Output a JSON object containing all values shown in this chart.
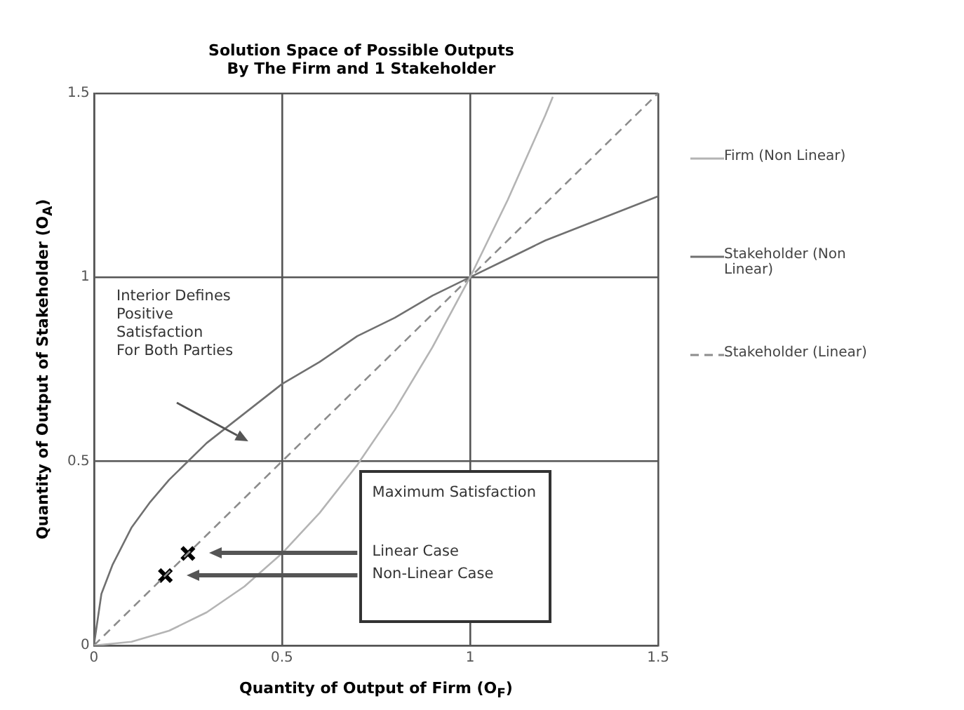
{
  "chart_data": {
    "type": "line",
    "title": "Solution Space of Possible Outputs\nBy The Firm and 1 Stakeholder",
    "xlabel": "Quantity of Output of Firm (O$_{F}$)",
    "ylabel": "Quantity of Output of Stakeholder (O$_{A}$)",
    "xlim": [
      0,
      1.5
    ],
    "ylim": [
      0,
      1.5
    ],
    "xticks": [
      0,
      0.5,
      1,
      1.5
    ],
    "yticks": [
      0,
      0.5,
      1,
      1.5
    ],
    "grid": true,
    "legend": "right",
    "marker": "none",
    "series": [
      {
        "name": "Firm (Non Linear)",
        "color": "#b4b4b4",
        "x": [
          0,
          0.1,
          0.2,
          0.3,
          0.4,
          0.5,
          0.6,
          0.7,
          0.8,
          0.9,
          1,
          1.1,
          1.2,
          1.22
        ],
        "values": [
          0,
          0.01,
          0.04,
          0.09,
          0.16,
          0.25,
          0.36,
          0.49,
          0.64,
          0.81,
          1,
          1.21,
          1.44,
          1.49
        ]
      },
      {
        "name": "Stakeholder (Non Linear)",
        "color": "#707070",
        "x": [
          0,
          0.02,
          0.05,
          0.1,
          0.15,
          0.2,
          0.3,
          0.4,
          0.5,
          0.6,
          0.7,
          0.8,
          0.9,
          1,
          1.1,
          1.2,
          1.3,
          1.4,
          1.5
        ],
        "values": [
          0,
          0.14,
          0.22,
          0.32,
          0.39,
          0.45,
          0.55,
          0.63,
          0.71,
          0.77,
          0.84,
          0.89,
          0.95,
          1,
          1.05,
          1.1,
          1.14,
          1.18,
          1.22
        ]
      },
      {
        "name": "Stakeholder (Linear)",
        "color": "#8c8c8c",
        "line_style": "dashed",
        "x": [
          0,
          1.5
        ],
        "values": [
          0,
          1.5
        ]
      },
      {
        "type": "scatter",
        "color": "#000000",
        "marker": "cross",
        "x": [
          0.25,
          0.19
        ],
        "values": [
          0.25,
          0.19
        ]
      }
    ],
    "annotations": [
      "Interior Defines\nPositive\nSatisfaction\nFor Both Parties",
      "Maximum Satisfaction",
      "Linear Case",
      "Non-Linear Case"
    ]
  }
}
